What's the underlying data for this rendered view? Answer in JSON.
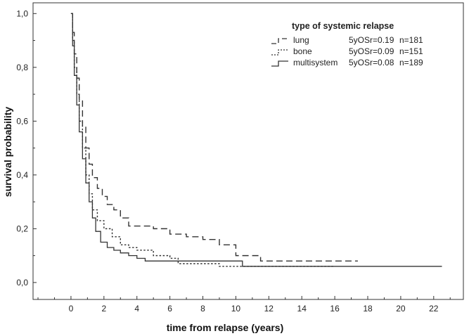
{
  "chart_data": {
    "type": "line",
    "step": true,
    "xlabel": "time from relapse (years)",
    "ylabel": "survival probability",
    "xlim": [
      -2.3,
      23.8
    ],
    "ylim": [
      -0.063,
      1.04
    ],
    "xticks": [
      0,
      2,
      4,
      6,
      8,
      10,
      12,
      14,
      16,
      18,
      20,
      22
    ],
    "xtick_labels": [
      "0",
      "2",
      "4",
      "6",
      "8",
      "10",
      "12",
      "14",
      "16",
      "18",
      "20",
      "22"
    ],
    "yticks": [
      0,
      0.2,
      0.4,
      0.6,
      0.8,
      1.0
    ],
    "ytick_labels": [
      "0,0",
      "0,2",
      "0,4",
      "0,6",
      "0,8",
      "1,0"
    ],
    "grid": false,
    "legend": {
      "title": "type of systemic relapse",
      "placement": "top-right"
    },
    "series": [
      {
        "name": "lung",
        "stat": "5yOSr=0.19",
        "n": "n=181",
        "dash": "dashed",
        "x": [
          0,
          0.1,
          0.2,
          0.35,
          0.5,
          0.7,
          0.9,
          1.1,
          1.3,
          1.6,
          1.9,
          2.2,
          2.6,
          3.0,
          3.5,
          4.0,
          5.0,
          6.0,
          7.0,
          8.0,
          9.0,
          10.0,
          10.5,
          11.5,
          12.0,
          17.4
        ],
        "y": [
          1.0,
          0.93,
          0.85,
          0.76,
          0.68,
          0.58,
          0.5,
          0.44,
          0.39,
          0.35,
          0.32,
          0.29,
          0.27,
          0.24,
          0.21,
          0.21,
          0.2,
          0.18,
          0.17,
          0.16,
          0.14,
          0.1,
          0.1,
          0.08,
          0.08,
          0.08
        ]
      },
      {
        "name": "bone",
        "stat": "5yOSr=0.09",
        "n": "n=151",
        "dash": "dotted",
        "x": [
          0,
          0.1,
          0.2,
          0.35,
          0.5,
          0.7,
          0.9,
          1.1,
          1.3,
          1.6,
          2.0,
          2.5,
          3.0,
          3.5,
          4.0,
          5.0,
          6.0,
          6.5,
          8.0,
          9.0,
          10.0,
          10.4,
          16.0
        ],
        "y": [
          1.0,
          0.9,
          0.8,
          0.7,
          0.6,
          0.5,
          0.4,
          0.33,
          0.27,
          0.23,
          0.2,
          0.17,
          0.14,
          0.13,
          0.12,
          0.1,
          0.09,
          0.07,
          0.07,
          0.06,
          0.06,
          0.06,
          0.06
        ]
      },
      {
        "name": "multisystem",
        "stat": "5yOSr=0.08",
        "n": "n=189",
        "dash": "solid",
        "x": [
          0,
          0.1,
          0.2,
          0.35,
          0.5,
          0.7,
          0.9,
          1.1,
          1.3,
          1.5,
          1.8,
          2.2,
          2.6,
          3.0,
          3.5,
          4.0,
          4.5,
          6.0,
          10.4,
          22.5
        ],
        "y": [
          1.0,
          0.88,
          0.77,
          0.66,
          0.56,
          0.46,
          0.37,
          0.3,
          0.24,
          0.19,
          0.15,
          0.13,
          0.12,
          0.11,
          0.1,
          0.09,
          0.08,
          0.08,
          0.06,
          0.06
        ]
      }
    ]
  }
}
